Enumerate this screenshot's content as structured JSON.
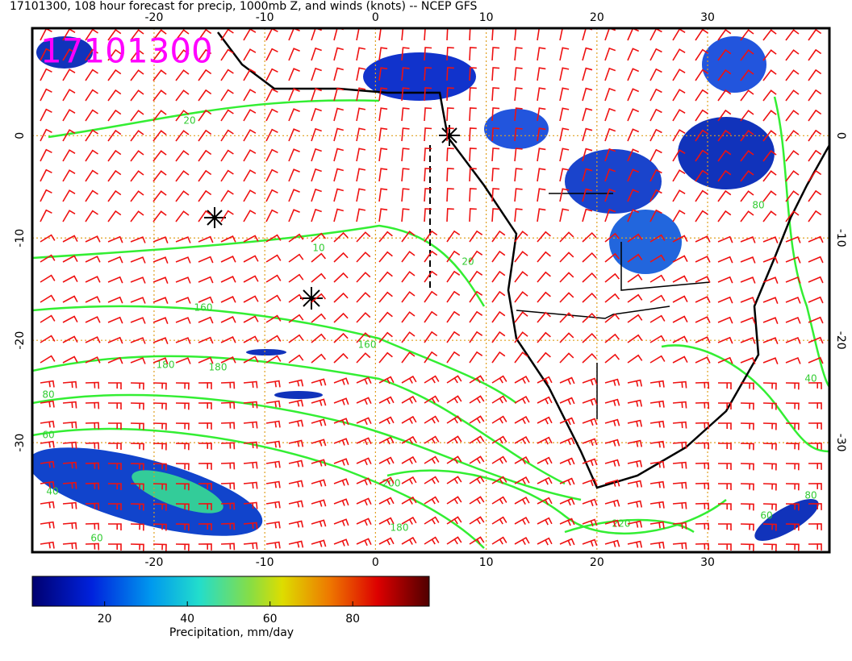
{
  "title": "17101300, 108 hour forecast for precip, 1000mb Z, and winds (knots) -- NCEP GFS",
  "stamp": "17101300",
  "map": {
    "lonlim": [
      -31,
      41
    ],
    "latlim": [
      10.5,
      -40.7
    ],
    "lonticks": [
      -20,
      -10,
      0,
      10,
      20,
      30
    ],
    "latticks": [
      0,
      -10,
      -20,
      -30
    ],
    "contour_labels": [
      20,
      10,
      160,
      180,
      180,
      160,
      80,
      60,
      20,
      200,
      180,
      220,
      40,
      60,
      80,
      60,
      40,
      80
    ]
  },
  "colorbar": {
    "lim": [
      2.5,
      98.5
    ],
    "ticks": [
      20,
      40,
      60,
      80
    ],
    "label": "Precipitation, mm/day"
  }
}
